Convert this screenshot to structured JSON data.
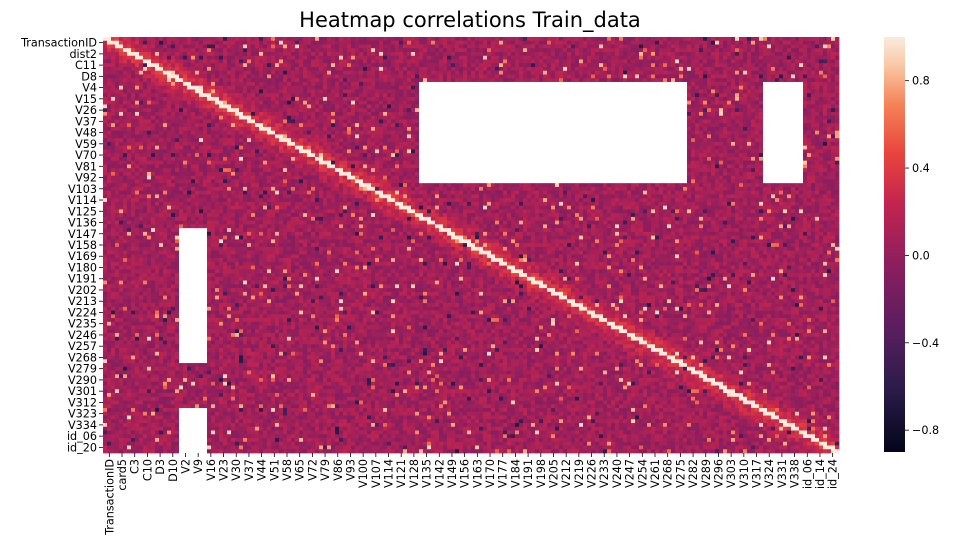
{
  "chart_data": {
    "type": "heatmap",
    "title": "Heatmap correlations Train_data",
    "y_tick_labels": [
      "TransactionID",
      "dist2",
      "C11",
      "D8",
      "V4",
      "V15",
      "V26",
      "V37",
      "V48",
      "V59",
      "V70",
      "V81",
      "V92",
      "V103",
      "V114",
      "V125",
      "V136",
      "V147",
      "V158",
      "V169",
      "V180",
      "V191",
      "V202",
      "V213",
      "V224",
      "V235",
      "V246",
      "V257",
      "V268",
      "V279",
      "V290",
      "V301",
      "V312",
      "V323",
      "V334",
      "id_06",
      "id_20"
    ],
    "x_tick_labels": [
      "TransactionID",
      "card5",
      "C3",
      "C10",
      "D3",
      "D10",
      "V2",
      "V9",
      "V16",
      "V23",
      "V30",
      "V37",
      "V44",
      "V51",
      "V58",
      "V65",
      "V72",
      "V79",
      "V86",
      "V93",
      "V100",
      "V107",
      "V114",
      "V121",
      "V128",
      "V135",
      "V142",
      "V149",
      "V156",
      "V163",
      "V170",
      "V177",
      "V184",
      "V191",
      "V198",
      "V205",
      "V212",
      "V219",
      "V226",
      "V233",
      "V240",
      "V247",
      "V254",
      "V261",
      "V268",
      "V275",
      "V282",
      "V289",
      "V296",
      "V303",
      "V310",
      "V317",
      "V324",
      "V331",
      "V338",
      "id_06",
      "id_14",
      "id_24"
    ],
    "value_range": [
      -0.9,
      1.0
    ],
    "colorbar_ticks": [
      0.8,
      0.4,
      0.0,
      -0.4,
      -0.8
    ],
    "colorbar_tick_labels": [
      "0.8",
      "0.4",
      "0.0",
      "−0.4",
      "−0.8"
    ],
    "colormap": "rocket",
    "diagonal_value": 1.0,
    "missing_value_color": "#ffffff",
    "missing_blocks": [
      {
        "rows": [
          "V4",
          "V92"
        ],
        "cols": [
          "V135",
          "V275"
        ]
      },
      {
        "rows": [
          "V4",
          "V92"
        ],
        "cols": [
          "V324",
          "V338"
        ]
      },
      {
        "rows": [
          "V147",
          "V268"
        ],
        "cols": [
          "V2",
          "V9"
        ]
      },
      {
        "rows": [
          "V323",
          "id_20"
        ],
        "cols": [
          "V2",
          "V9"
        ]
      }
    ]
  }
}
